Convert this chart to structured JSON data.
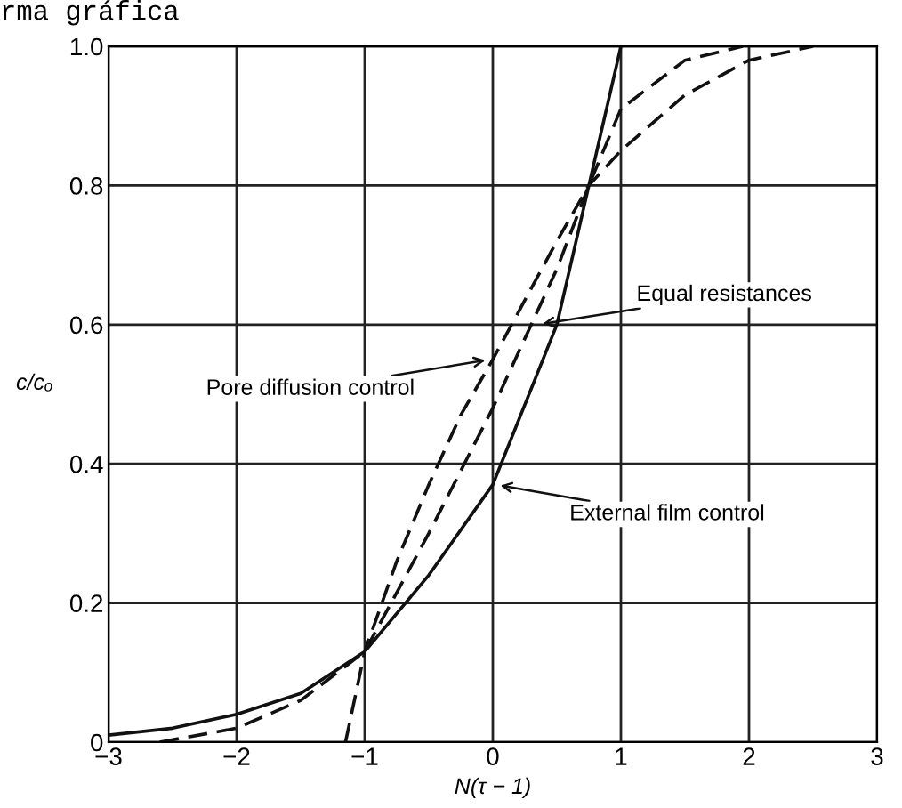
{
  "chart_data": {
    "type": "line",
    "title": "rma gráfica",
    "xlabel": "N(τ − 1)",
    "ylabel": "c/cₒ",
    "xlim": [
      -3,
      3
    ],
    "xticks": [
      {
        "value": -3,
        "label": "−3"
      },
      {
        "value": -2,
        "label": "−2"
      },
      {
        "value": -1,
        "label": "−1"
      },
      0,
      1,
      2,
      3
    ],
    "ylim": [
      0,
      1.0
    ],
    "yticks": [
      0,
      0.2,
      0.4,
      0.6,
      0.8,
      {
        "value": 1.0,
        "label": "1.0"
      }
    ],
    "grid": true,
    "marker": "none",
    "series": [
      {
        "color": "#111111",
        "line_style": "solid",
        "x": [
          -3,
          -2.5,
          -2,
          -1.5,
          -1,
          -0.5,
          0,
          0.5,
          0.75,
          1
        ],
        "values": [
          0.01,
          0.02,
          0.04,
          0.07,
          0.13,
          0.24,
          0.37,
          0.6,
          0.8,
          1.0
        ]
      },
      {
        "color": "#111111",
        "line_style": "dashed",
        "x": [
          -1.15,
          -1,
          -0.75,
          -0.5,
          -0.25,
          0,
          0.5,
          0.75,
          1,
          1.5,
          2,
          2.5
        ],
        "values": [
          0,
          0.13,
          0.26,
          0.37,
          0.47,
          0.55,
          0.72,
          0.8,
          0.85,
          0.93,
          0.98,
          1.0
        ]
      },
      {
        "color": "#111111",
        "line_style": "dashed",
        "x": [
          -2.6,
          -2,
          -1.5,
          -1,
          -0.5,
          0,
          0.5,
          0.75,
          1,
          1.5,
          1.95
        ],
        "values": [
          0,
          0.02,
          0.06,
          0.13,
          0.3,
          0.48,
          0.68,
          0.8,
          0.91,
          0.98,
          1.0
        ]
      }
    ],
    "annotations": [
      {
        "text": "Equal resistances",
        "x": 0.35,
        "y": 0.6
      },
      {
        "text": "Pore diffusion control",
        "x": -0.02,
        "y": 0.55
      },
      {
        "text": "External film control",
        "x": 0.02,
        "y": 0.37
      }
    ]
  }
}
